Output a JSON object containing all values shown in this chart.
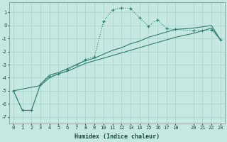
{
  "xlabel": "Humidex (Indice chaleur)",
  "ylabel": "",
  "background_color": "#c5e8e3",
  "grid_color": "#a8d0ca",
  "line_color": "#2d7d6e",
  "xlim": [
    -0.5,
    23.5
  ],
  "ylim": [
    -7.5,
    1.8
  ],
  "yticks": [
    1,
    0,
    -1,
    -2,
    -3,
    -4,
    -5,
    -6,
    -7
  ],
  "xticks": [
    0,
    1,
    2,
    3,
    4,
    5,
    6,
    7,
    8,
    9,
    10,
    11,
    12,
    13,
    14,
    15,
    16,
    17,
    18,
    20,
    21,
    22,
    23
  ],
  "series1": [
    [
      0,
      -5.0
    ],
    [
      1,
      -6.5
    ],
    [
      2,
      -6.5
    ],
    [
      3,
      -4.5
    ],
    [
      4,
      -3.9
    ],
    [
      5,
      -3.7
    ],
    [
      6,
      -3.4
    ],
    [
      7,
      -3.0
    ],
    [
      8,
      -2.6
    ],
    [
      9,
      -2.4
    ],
    [
      10,
      0.3
    ],
    [
      11,
      1.2
    ],
    [
      12,
      1.35
    ],
    [
      13,
      1.3
    ],
    [
      14,
      0.6
    ],
    [
      15,
      -0.05
    ],
    [
      16,
      0.45
    ],
    [
      17,
      -0.25
    ],
    [
      18,
      -0.3
    ],
    [
      20,
      -0.4
    ],
    [
      21,
      -0.4
    ],
    [
      22,
      -0.35
    ],
    [
      23,
      -1.1
    ]
  ],
  "series2": [
    [
      0,
      -5.0
    ],
    [
      1,
      -6.5
    ],
    [
      2,
      -6.5
    ],
    [
      3,
      -4.5
    ],
    [
      4,
      -3.8
    ],
    [
      5,
      -3.6
    ],
    [
      6,
      -3.3
    ],
    [
      7,
      -3.0
    ],
    [
      8,
      -2.7
    ],
    [
      9,
      -2.5
    ],
    [
      10,
      -2.2
    ],
    [
      11,
      -1.9
    ],
    [
      12,
      -1.7
    ],
    [
      13,
      -1.4
    ],
    [
      14,
      -1.2
    ],
    [
      15,
      -0.9
    ],
    [
      16,
      -0.7
    ],
    [
      17,
      -0.5
    ],
    [
      18,
      -0.3
    ],
    [
      20,
      -0.2
    ],
    [
      21,
      -0.1
    ],
    [
      22,
      0.0
    ],
    [
      23,
      -1.1
    ]
  ],
  "series3": [
    [
      0,
      -5.0
    ],
    [
      3,
      -4.6
    ],
    [
      4,
      -4.0
    ],
    [
      5,
      -3.7
    ],
    [
      6,
      -3.5
    ],
    [
      7,
      -3.2
    ],
    [
      8,
      -2.9
    ],
    [
      9,
      -2.7
    ],
    [
      10,
      -2.5
    ],
    [
      11,
      -2.3
    ],
    [
      12,
      -2.1
    ],
    [
      13,
      -1.9
    ],
    [
      14,
      -1.7
    ],
    [
      15,
      -1.5
    ],
    [
      16,
      -1.3
    ],
    [
      17,
      -1.1
    ],
    [
      18,
      -0.9
    ],
    [
      20,
      -0.6
    ],
    [
      21,
      -0.4
    ],
    [
      22,
      -0.2
    ],
    [
      23,
      -1.1
    ]
  ]
}
